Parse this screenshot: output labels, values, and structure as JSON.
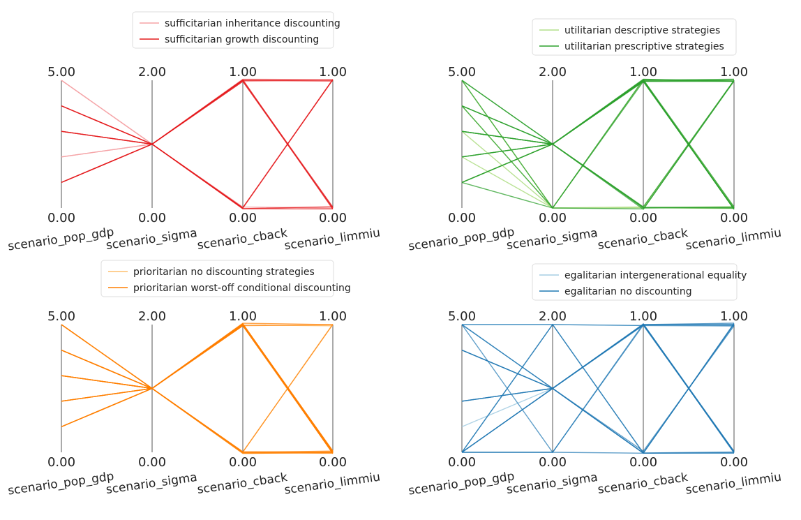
{
  "chart_data": [
    {
      "type": "parallel_coordinates",
      "title": "",
      "axes": [
        {
          "name": "scenario_pop_gdp",
          "min": 0.0,
          "max": 5.0,
          "min_label": "0.00",
          "max_label": "5.00"
        },
        {
          "name": "scenario_sigma",
          "min": 0.0,
          "max": 2.0,
          "min_label": "0.00",
          "max_label": "2.00"
        },
        {
          "name": "scenario_cback",
          "min": 0.0,
          "max": 1.0,
          "min_label": "0.00",
          "max_label": "1.00"
        },
        {
          "name": "scenario_limmiu",
          "min": 0.0,
          "max": 1.0,
          "min_label": "0.00",
          "max_label": "1.00"
        }
      ],
      "legend": {
        "position": "top",
        "entries": [
          "sufficitarian inheritance discounting",
          "sufficitarian growth discounting"
        ]
      },
      "series": [
        {
          "name": "sufficitarian inheritance discounting",
          "color": "#f5a3a6",
          "alpha": 0.9,
          "values": [
            [
              5,
              1,
              1,
              1
            ],
            [
              2,
              1,
              1,
              1
            ],
            [
              2,
              1,
              0,
              1
            ],
            [
              5,
              1,
              0,
              0
            ],
            [
              1,
              1,
              1,
              0
            ]
          ]
        },
        {
          "name": "sufficitarian growth discounting",
          "color": "#e41a1c",
          "alpha": 0.75,
          "values": [
            [
              4,
              1,
              1,
              0
            ],
            [
              4,
              1,
              1,
              0
            ],
            [
              3,
              1,
              1,
              0
            ],
            [
              3,
              1,
              0,
              1
            ],
            [
              1,
              1,
              0,
              1
            ],
            [
              1,
              1,
              1,
              1
            ],
            [
              4,
              1,
              0,
              0
            ],
            [
              3,
              1,
              1,
              1
            ],
            [
              1,
              1,
              0,
              0
            ]
          ]
        }
      ]
    },
    {
      "type": "parallel_coordinates",
      "title": "",
      "axes": [
        {
          "name": "scenario_pop_gdp",
          "min": 0.0,
          "max": 5.0,
          "min_label": "0.00",
          "max_label": "5.00"
        },
        {
          "name": "scenario_sigma",
          "min": 0.0,
          "max": 2.0,
          "min_label": "0.00",
          "max_label": "2.00"
        },
        {
          "name": "scenario_cback",
          "min": 0.0,
          "max": 1.0,
          "min_label": "0.00",
          "max_label": "1.00"
        },
        {
          "name": "scenario_limmiu",
          "min": 0.0,
          "max": 1.0,
          "min_label": "0.00",
          "max_label": "1.00"
        }
      ],
      "legend": {
        "position": "top-right",
        "entries": [
          "utilitarian descriptive strategies",
          "utilitarian prescriptive strategies"
        ]
      },
      "series": [
        {
          "name": "utilitarian descriptive strategies",
          "color": "#b2df8a",
          "alpha": 0.9,
          "values": [
            [
              5,
              0,
              0,
              1
            ],
            [
              4,
              0,
              1,
              0
            ],
            [
              3,
              0,
              0,
              0
            ],
            [
              2,
              0,
              1,
              1
            ],
            [
              1,
              1,
              0,
              1
            ],
            [
              5,
              0,
              0,
              0
            ]
          ]
        },
        {
          "name": "utilitarian prescriptive strategies",
          "color": "#2ca02c",
          "alpha": 0.75,
          "values": [
            [
              5,
              1,
              1,
              0
            ],
            [
              4,
              1,
              1,
              0
            ],
            [
              4,
              0,
              1,
              1
            ],
            [
              3,
              1,
              1,
              0
            ],
            [
              3,
              1,
              0,
              1
            ],
            [
              2,
              1,
              1,
              0
            ],
            [
              1,
              1,
              1,
              0
            ],
            [
              1,
              0,
              1,
              1
            ],
            [
              4,
              1,
              0,
              0
            ],
            [
              3,
              1,
              1,
              1
            ],
            [
              2,
              1,
              0,
              0
            ],
            [
              1,
              1,
              1,
              1
            ],
            [
              5,
              0,
              0,
              1
            ],
            [
              2,
              1,
              1,
              0
            ],
            [
              1,
              1,
              0,
              1
            ],
            [
              4,
              1,
              1,
              1
            ],
            [
              3,
              1,
              0,
              0
            ],
            [
              5,
              1,
              1,
              1
            ]
          ]
        }
      ]
    },
    {
      "type": "parallel_coordinates",
      "title": "",
      "axes": [
        {
          "name": "scenario_pop_gdp",
          "min": 0.0,
          "max": 5.0,
          "min_label": "0.00",
          "max_label": "5.00"
        },
        {
          "name": "scenario_sigma",
          "min": 0.0,
          "max": 2.0,
          "min_label": "0.00",
          "max_label": "2.00"
        },
        {
          "name": "scenario_cback",
          "min": 0.0,
          "max": 1.0,
          "min_label": "0.00",
          "max_label": "1.00"
        },
        {
          "name": "scenario_limmiu",
          "min": 0.0,
          "max": 1.0,
          "min_label": "0.00",
          "max_label": "1.00"
        }
      ],
      "legend": {
        "position": "top",
        "entries": [
          "prioritarian no discounting strategies",
          "prioritarian worst-off conditional discounting"
        ]
      },
      "series": [
        {
          "name": "prioritarian no discounting strategies",
          "color": "#fdbf6f",
          "alpha": 0.9,
          "values": [
            [
              5,
              1,
              1,
              1
            ],
            [
              2,
              1,
              0,
              0
            ],
            [
              3,
              1,
              1,
              0
            ],
            [
              1,
              1,
              0,
              1
            ]
          ]
        },
        {
          "name": "prioritarian worst-off conditional discounting",
          "color": "#ff7f00",
          "alpha": 0.7,
          "values": [
            [
              5,
              1,
              1,
              0
            ],
            [
              4,
              1,
              1,
              0
            ],
            [
              4,
              1,
              1,
              0
            ],
            [
              3,
              1,
              1,
              0
            ],
            [
              3,
              1,
              1,
              0
            ],
            [
              2,
              1,
              1,
              0
            ],
            [
              2,
              1,
              1,
              0
            ],
            [
              1,
              1,
              1,
              0
            ],
            [
              1,
              1,
              1,
              0
            ],
            [
              5,
              1,
              0,
              0
            ],
            [
              4,
              1,
              0,
              0
            ],
            [
              3,
              1,
              0,
              0
            ],
            [
              2,
              1,
              0,
              0
            ],
            [
              1,
              1,
              0,
              0
            ],
            [
              4,
              1,
              1,
              1
            ],
            [
              3,
              1,
              1,
              1
            ],
            [
              1,
              1,
              0,
              1
            ],
            [
              5,
              1,
              1,
              0
            ],
            [
              3,
              1,
              1,
              0
            ],
            [
              2,
              1,
              1,
              0
            ],
            [
              4,
              1,
              1,
              0
            ]
          ]
        }
      ]
    },
    {
      "type": "parallel_coordinates",
      "title": "",
      "axes": [
        {
          "name": "scenario_pop_gdp",
          "min": 0.0,
          "max": 5.0,
          "min_label": "0.00",
          "max_label": "5.00"
        },
        {
          "name": "scenario_sigma",
          "min": 0.0,
          "max": 2.0,
          "min_label": "0.00",
          "max_label": "2.00"
        },
        {
          "name": "scenario_cback",
          "min": 0.0,
          "max": 1.0,
          "min_label": "0.00",
          "max_label": "1.00"
        },
        {
          "name": "scenario_limmiu",
          "min": 0.0,
          "max": 1.0,
          "min_label": "0.00",
          "max_label": "1.00"
        }
      ],
      "legend": {
        "position": "top-right",
        "entries": [
          "egalitarian intergenerational equality",
          "egalitarian no discounting"
        ]
      },
      "series": [
        {
          "name": "egalitarian intergenerational equality",
          "color": "#a6cee3",
          "alpha": 0.9,
          "values": [
            [
              1,
              1,
              1,
              1
            ],
            [
              5,
              2,
              1,
              0
            ]
          ]
        },
        {
          "name": "egalitarian no discounting",
          "color": "#1f78b4",
          "alpha": 0.7,
          "values": [
            [
              5,
              1,
              1,
              0
            ],
            [
              4,
              1,
              1,
              0
            ],
            [
              2,
              1,
              1,
              0
            ],
            [
              0,
              1,
              1,
              0
            ],
            [
              0,
              2,
              0,
              1
            ],
            [
              5,
              0,
              1,
              1
            ],
            [
              0,
              1,
              0,
              1
            ],
            [
              5,
              1,
              0,
              0
            ],
            [
              4,
              1,
              1,
              1
            ],
            [
              2,
              1,
              0,
              0
            ],
            [
              0,
              0,
              0,
              0
            ],
            [
              0,
              2,
              1,
              1
            ],
            [
              5,
              2,
              0,
              1
            ],
            [
              0,
              0,
              1,
              0
            ],
            [
              2,
              1,
              1,
              1
            ],
            [
              4,
              1,
              0,
              1
            ],
            [
              0,
              1,
              1,
              0
            ]
          ]
        }
      ]
    }
  ]
}
